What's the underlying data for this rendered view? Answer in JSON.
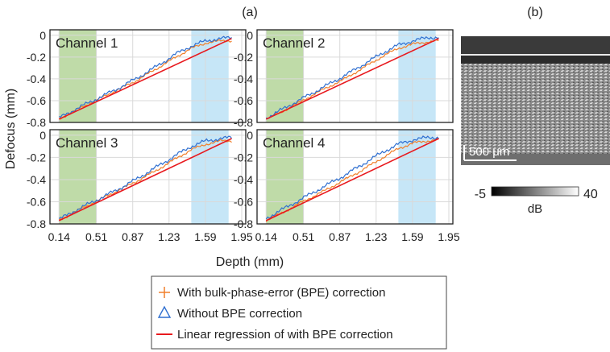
{
  "panel_a_label": "(a)",
  "panel_b_label": "(b)",
  "ylabel": "Defocus (mm)",
  "xlabel": "Depth (mm)",
  "legend": {
    "with_bpe": "With bulk-phase-error (BPE) correction",
    "without_bpe": "Without BPE correction",
    "regression": "Linear regression of with BPE correction"
  },
  "image_panel": {
    "scale_bar_label": "500 μm",
    "colorbar_min": "-5",
    "colorbar_max": "40",
    "colorbar_unit": "dB"
  },
  "colors": {
    "with_bpe": "#f07f2a",
    "without_bpe": "#2f6fd0",
    "regression": "#e8191e",
    "shallow_region": "#bfdba8",
    "deep_region": "#c6e6f7"
  },
  "chart_data": [
    {
      "type": "line",
      "title": "Channel 1",
      "x_ticks": [
        "0.14",
        "0.51",
        "0.87",
        "1.23",
        "1.59",
        "1.95"
      ],
      "y_ticks": [
        "0",
        "-0.2",
        "-0.4",
        "-0.6",
        "-0.8"
      ],
      "xlim": [
        0.05,
        1.99
      ],
      "ylim": [
        -0.8,
        0.05
      ],
      "shaded_regions": [
        {
          "from": 0.14,
          "to": 0.51
        },
        {
          "from": 1.45,
          "to": 1.82
        }
      ],
      "series": [
        {
          "name": "With bulk-phase-error (BPE) correction",
          "x": [
            0.14,
            0.3,
            0.5,
            0.7,
            0.9,
            1.1,
            1.3,
            1.45,
            1.6,
            1.75,
            1.85
          ],
          "y": [
            -0.77,
            -0.69,
            -0.6,
            -0.51,
            -0.42,
            -0.31,
            -0.2,
            -0.12,
            -0.07,
            -0.05,
            -0.05
          ]
        },
        {
          "name": "Without BPE correction",
          "x": [
            0.14,
            0.3,
            0.5,
            0.7,
            0.9,
            1.1,
            1.3,
            1.45,
            1.6,
            1.75,
            1.85
          ],
          "y": [
            -0.76,
            -0.68,
            -0.59,
            -0.5,
            -0.4,
            -0.29,
            -0.17,
            -0.1,
            -0.05,
            -0.03,
            -0.02
          ]
        },
        {
          "name": "Linear regression of with BPE correction",
          "x": [
            0.14,
            1.85
          ],
          "y": [
            -0.77,
            -0.03
          ]
        }
      ]
    },
    {
      "type": "line",
      "title": "Channel 2",
      "x_ticks": [
        "0.14",
        "0.51",
        "0.87",
        "1.23",
        "1.59",
        "1.95"
      ],
      "y_ticks": [
        "0",
        "-0.2",
        "-0.4",
        "-0.6",
        "-0.8"
      ],
      "xlim": [
        0.05,
        1.99
      ],
      "ylim": [
        -0.8,
        0.05
      ],
      "shaded_regions": [
        {
          "from": 0.14,
          "to": 0.51
        },
        {
          "from": 1.45,
          "to": 1.82
        }
      ],
      "series": [
        {
          "name": "With bulk-phase-error (BPE) correction",
          "x": [
            0.14,
            0.3,
            0.5,
            0.7,
            0.9,
            1.1,
            1.3,
            1.45,
            1.6,
            1.75,
            1.85
          ],
          "y": [
            -0.77,
            -0.7,
            -0.6,
            -0.5,
            -0.41,
            -0.3,
            -0.19,
            -0.12,
            -0.08,
            -0.06,
            -0.05
          ]
        },
        {
          "name": "Without BPE correction",
          "x": [
            0.14,
            0.3,
            0.5,
            0.7,
            0.9,
            1.1,
            1.3,
            1.45,
            1.6,
            1.75,
            1.85
          ],
          "y": [
            -0.76,
            -0.68,
            -0.58,
            -0.48,
            -0.38,
            -0.27,
            -0.16,
            -0.09,
            -0.05,
            -0.02,
            -0.02
          ]
        },
        {
          "name": "Linear regression of with BPE correction",
          "x": [
            0.14,
            1.85
          ],
          "y": [
            -0.77,
            -0.03
          ]
        }
      ]
    },
    {
      "type": "line",
      "title": "Channel 3",
      "x_ticks": [
        "0.14",
        "0.51",
        "0.87",
        "1.23",
        "1.59",
        "1.95"
      ],
      "y_ticks": [
        "0",
        "-0.2",
        "-0.4",
        "-0.6",
        "-0.8"
      ],
      "xlim": [
        0.05,
        1.99
      ],
      "ylim": [
        -0.8,
        0.05
      ],
      "shaded_regions": [
        {
          "from": 0.14,
          "to": 0.51
        },
        {
          "from": 1.45,
          "to": 1.82
        }
      ],
      "series": [
        {
          "name": "With bulk-phase-error (BPE) correction",
          "x": [
            0.14,
            0.3,
            0.5,
            0.7,
            0.9,
            1.1,
            1.3,
            1.45,
            1.6,
            1.75,
            1.85
          ],
          "y": [
            -0.77,
            -0.69,
            -0.6,
            -0.51,
            -0.42,
            -0.32,
            -0.21,
            -0.13,
            -0.08,
            -0.05,
            -0.05
          ]
        },
        {
          "name": "Without BPE correction",
          "x": [
            0.14,
            0.3,
            0.5,
            0.7,
            0.9,
            1.1,
            1.3,
            1.45,
            1.6,
            1.75,
            1.85
          ],
          "y": [
            -0.76,
            -0.68,
            -0.59,
            -0.5,
            -0.4,
            -0.29,
            -0.18,
            -0.1,
            -0.05,
            -0.03,
            -0.02
          ]
        },
        {
          "name": "Linear regression of with BPE correction",
          "x": [
            0.14,
            1.85
          ],
          "y": [
            -0.77,
            -0.03
          ]
        }
      ]
    },
    {
      "type": "line",
      "title": "Channel 4",
      "x_ticks": [
        "0.14",
        "0.51",
        "0.87",
        "1.23",
        "1.59",
        "1.95"
      ],
      "y_ticks": [
        "0",
        "-0.2",
        "-0.4",
        "-0.6",
        "-0.8"
      ],
      "xlim": [
        0.05,
        1.99
      ],
      "ylim": [
        -0.8,
        0.05
      ],
      "shaded_regions": [
        {
          "from": 0.14,
          "to": 0.51
        },
        {
          "from": 1.45,
          "to": 1.82
        }
      ],
      "series": [
        {
          "name": "With bulk-phase-error (BPE) correction",
          "x": [
            0.14,
            0.3,
            0.5,
            0.7,
            0.9,
            1.1,
            1.3,
            1.45,
            1.6,
            1.75,
            1.85
          ],
          "y": [
            -0.77,
            -0.7,
            -0.6,
            -0.51,
            -0.41,
            -0.31,
            -0.2,
            -0.12,
            -0.07,
            -0.05,
            -0.04
          ]
        },
        {
          "name": "Without BPE correction",
          "x": [
            0.14,
            0.3,
            0.5,
            0.7,
            0.9,
            1.1,
            1.3,
            1.45,
            1.6,
            1.75,
            1.85
          ],
          "y": [
            -0.75,
            -0.67,
            -0.57,
            -0.47,
            -0.37,
            -0.26,
            -0.15,
            -0.08,
            -0.04,
            -0.02,
            -0.02
          ]
        },
        {
          "name": "Linear regression of with BPE correction",
          "x": [
            0.14,
            1.85
          ],
          "y": [
            -0.77,
            -0.03
          ]
        }
      ]
    }
  ]
}
